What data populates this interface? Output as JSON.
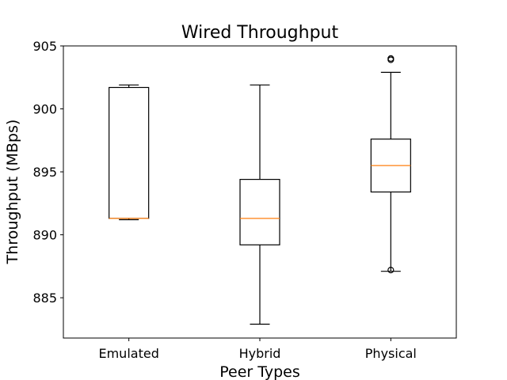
{
  "chart_data": {
    "type": "box",
    "title": "Wired Throughput",
    "xlabel": "Peer Types",
    "ylabel": "Throughput (MBps)",
    "ylim": [
      881.8,
      905.0
    ],
    "yticks": [
      885,
      890,
      895,
      900,
      905
    ],
    "categories": [
      "Emulated",
      "Hybrid",
      "Physical"
    ],
    "boxes": [
      {
        "category": "Emulated",
        "whisker_low": 891.2,
        "q1": 891.3,
        "median": 891.3,
        "q3": 901.7,
        "whisker_high": 901.9,
        "outliers": []
      },
      {
        "category": "Hybrid",
        "whisker_low": 882.9,
        "q1": 889.2,
        "median": 891.3,
        "q3": 894.4,
        "whisker_high": 901.9,
        "outliers": []
      },
      {
        "category": "Physical",
        "whisker_low": 887.1,
        "q1": 893.4,
        "median": 895.5,
        "q3": 897.6,
        "whisker_high": 902.9,
        "outliers": [
          903.9,
          904.0,
          887.2
        ]
      }
    ],
    "grid": false,
    "colors": {
      "box": "#000000",
      "median": "#ff7f0e"
    }
  }
}
